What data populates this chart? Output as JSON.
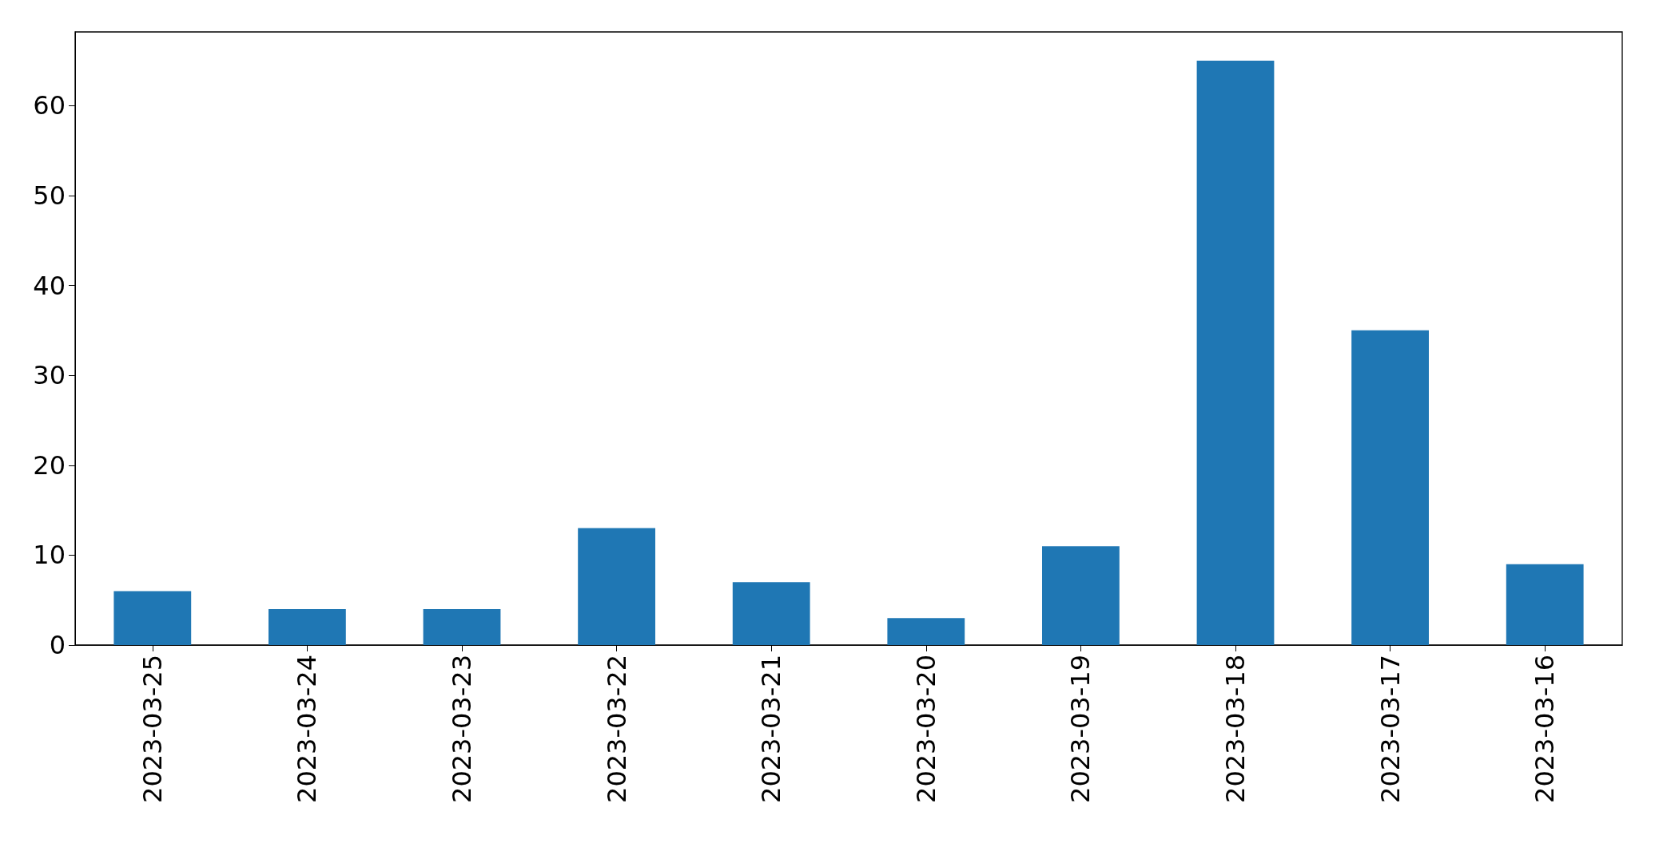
{
  "chart_data": {
    "type": "bar",
    "categories": [
      "2023-03-25",
      "2023-03-24",
      "2023-03-23",
      "2023-03-22",
      "2023-03-21",
      "2023-03-20",
      "2023-03-19",
      "2023-03-18",
      "2023-03-17",
      "2023-03-16"
    ],
    "values": [
      6,
      4,
      4,
      13,
      7,
      3,
      11,
      65,
      35,
      9
    ],
    "color": "#1f77b4",
    "ylim": [
      0,
      68.2
    ],
    "yticks": [
      0,
      10,
      20,
      30,
      40,
      50,
      60
    ],
    "grid": false
  }
}
